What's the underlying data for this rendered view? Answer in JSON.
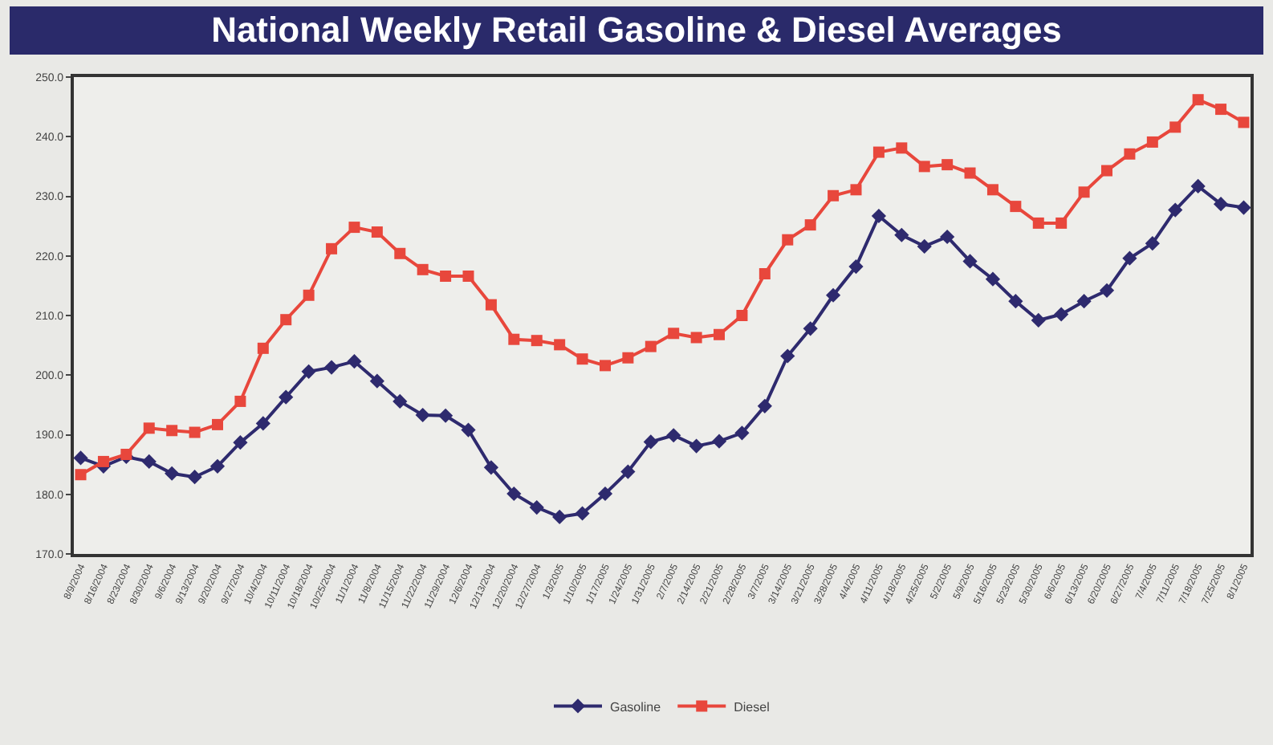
{
  "chart_data": {
    "type": "line",
    "title": "National Weekly Retail Gasoline & Diesel Averages",
    "categories": [
      "8/9/2004",
      "8/16/2004",
      "8/23/2004",
      "8/30/2004",
      "9/6/2004",
      "9/13/2004",
      "9/20/2004",
      "9/27/2004",
      "10/4/2004",
      "10/11/2004",
      "10/18/2004",
      "10/25/2004",
      "11/1/2004",
      "11/8/2004",
      "11/15/2004",
      "11/22/2004",
      "11/29/2004",
      "12/6/2004",
      "12/13/2004",
      "12/20/2004",
      "12/27/2004",
      "1/3/2005",
      "1/10/2005",
      "1/17/2005",
      "1/24/2005",
      "1/31/2005",
      "2/7/2005",
      "2/14/2005",
      "2/21/2005",
      "2/28/2005",
      "3/7/2005",
      "3/14/2005",
      "3/21/2005",
      "3/28/2005",
      "4/4/2005",
      "4/11/2005",
      "4/18/2005",
      "4/25/2005",
      "5/2/2005",
      "5/9/2005",
      "5/16/2005",
      "5/23/2005",
      "5/30/2005",
      "6/6/2005",
      "6/13/2005",
      "6/20/2005",
      "6/27/2005",
      "7/4/2005",
      "7/11/2005",
      "7/18/2005",
      "7/25/2005",
      "8/1/2005"
    ],
    "series": [
      {
        "name": "Gasoline",
        "color": "#2e2a6e",
        "marker": "diamond",
        "values": [
          186.1,
          184.7,
          186.3,
          185.5,
          183.5,
          182.9,
          184.7,
          188.7,
          191.9,
          196.3,
          200.6,
          201.3,
          202.3,
          199.0,
          195.6,
          193.3,
          193.2,
          190.8,
          184.5,
          180.1,
          177.8,
          176.2,
          176.8,
          180.1,
          183.8,
          188.8,
          189.9,
          188.1,
          188.9,
          190.3,
          194.8,
          203.2,
          207.8,
          213.4,
          218.2,
          226.7,
          223.5,
          221.6,
          223.2,
          219.1,
          216.1,
          212.4,
          209.2,
          210.2,
          212.4,
          214.2,
          219.6,
          222.1,
          227.7,
          231.7,
          228.7,
          228.1
        ]
      },
      {
        "name": "Diesel",
        "color": "#e8473c",
        "marker": "square",
        "values": [
          183.3,
          185.5,
          186.7,
          191.1,
          190.7,
          190.4,
          191.7,
          195.6,
          204.5,
          209.3,
          213.4,
          221.2,
          224.8,
          224.0,
          220.4,
          217.7,
          216.6,
          216.6,
          211.8,
          206.0,
          205.8,
          205.1,
          202.7,
          201.6,
          202.9,
          204.8,
          207.0,
          206.3,
          206.8,
          210.0,
          217.0,
          222.7,
          225.2,
          230.1,
          231.1,
          237.4,
          238.1,
          235.0,
          235.3,
          233.9,
          231.1,
          228.3,
          225.5,
          225.5,
          230.7,
          234.3,
          237.1,
          239.1,
          241.6,
          246.2,
          244.6,
          242.4
        ]
      }
    ],
    "ylim": [
      170,
      250
    ],
    "yticks": [
      {
        "value": 170,
        "label": "170.0"
      },
      {
        "value": 180,
        "label": "180.0"
      },
      {
        "value": 190,
        "label": "190.0"
      },
      {
        "value": 200,
        "label": "200.0"
      },
      {
        "value": 210,
        "label": "210.0"
      },
      {
        "value": 220,
        "label": "220.0"
      },
      {
        "value": 230,
        "label": "230.0"
      },
      {
        "value": 240,
        "label": "240.0"
      },
      {
        "value": 250,
        "label": "250.0"
      }
    ],
    "grid": false,
    "legend": "bottom",
    "line_style": "solid"
  }
}
